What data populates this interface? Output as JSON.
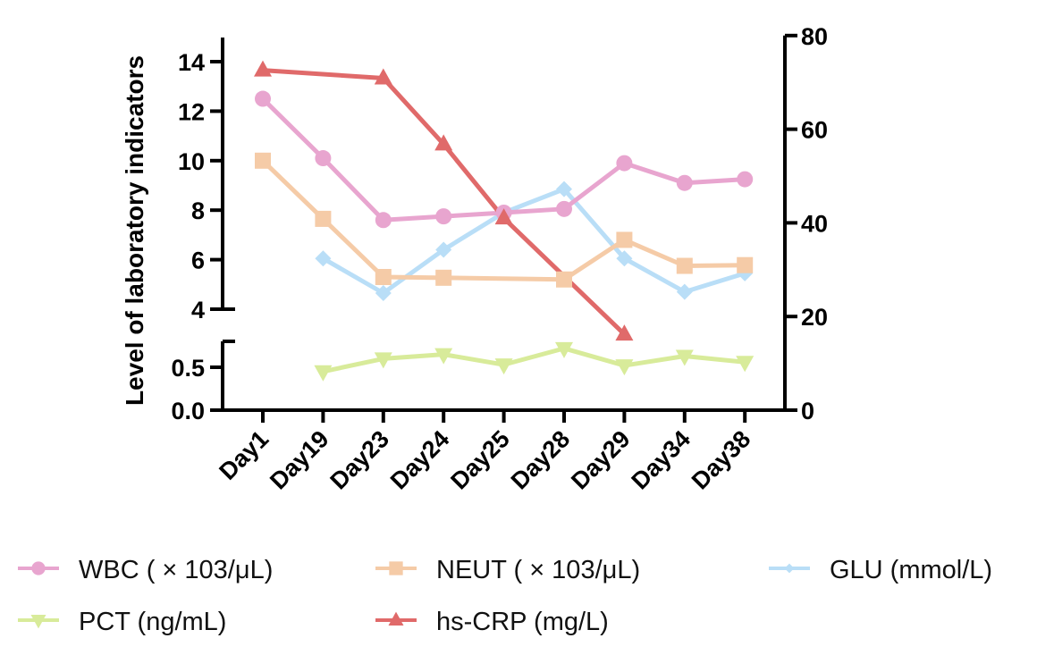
{
  "chart_data": {
    "type": "line",
    "title": "",
    "xlabel": "",
    "ylabel": "Level of laboratory indicators",
    "categories": [
      "Day1",
      "Day19",
      "Day23",
      "Day24",
      "Day25",
      "Day28",
      "Day29",
      "Day34",
      "Day38"
    ],
    "left_axis": {
      "broken": true,
      "upper_segment": {
        "range": [
          4,
          15
        ],
        "ticks": [
          "4",
          "6",
          "8",
          "10",
          "12",
          "14"
        ]
      },
      "lower_segment": {
        "range": [
          0,
          0.8
        ],
        "ticks": [
          "0.0",
          "0.5"
        ]
      }
    },
    "right_axis": {
      "range": [
        0,
        80
      ],
      "ticks": [
        "0",
        "20",
        "40",
        "60",
        "80"
      ]
    },
    "grid": false,
    "legend_placement": "bottom",
    "series": [
      {
        "name": "WBC ( × 103/μL)",
        "axis": "left",
        "marker": "circle",
        "color": "#e8a5cf",
        "values": [
          12.5,
          10.1,
          7.6,
          7.75,
          7.9,
          8.05,
          9.9,
          9.1,
          9.25
        ]
      },
      {
        "name": "NEUT ( × 103/μL)",
        "axis": "left",
        "marker": "square",
        "color": "#f5cba7",
        "values": [
          10.0,
          7.65,
          5.3,
          5.27,
          null,
          5.2,
          6.8,
          5.75,
          5.78
        ]
      },
      {
        "name": "GLU (mmol/L)",
        "axis": "left",
        "marker": "diamond",
        "color": "#b9def7",
        "values": [
          null,
          6.05,
          4.65,
          6.4,
          7.9,
          8.85,
          6.05,
          4.7,
          5.45
        ]
      },
      {
        "name": "PCT (ng/mL)",
        "axis": "left-lower",
        "marker": "triangle-down",
        "color": "#d8eb9a",
        "values": [
          null,
          0.45,
          0.6,
          0.65,
          0.53,
          0.72,
          0.52,
          0.63,
          0.56
        ]
      },
      {
        "name": "hs-CRP  (mg/L)",
        "axis": "right",
        "marker": "triangle-up",
        "color": "#e06a6a",
        "values": [
          72.6,
          null,
          70.9,
          56.8,
          41.0,
          null,
          16.2,
          null,
          null
        ]
      }
    ],
    "legend_order": [
      0,
      1,
      2,
      3,
      4
    ]
  }
}
